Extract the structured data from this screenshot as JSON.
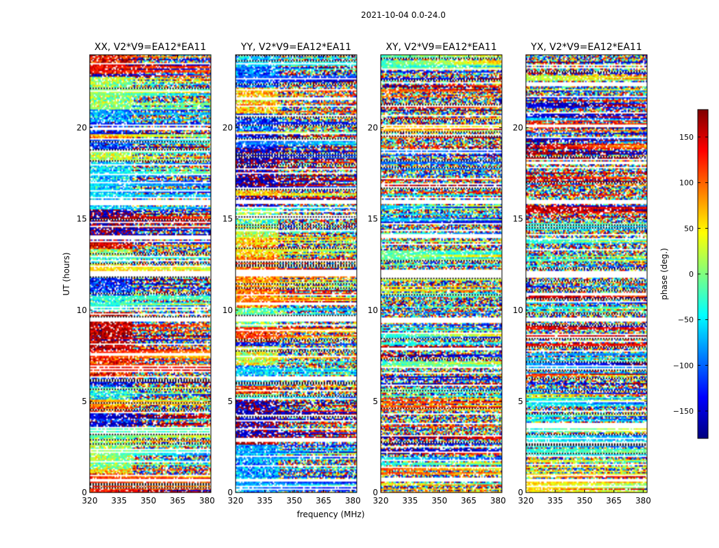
{
  "chart_data": {
    "type": "heatmap",
    "title": "2021-10-04 0.0-24.0",
    "xlabel": "frequency (MHz)",
    "ylabel": "UT (hours)",
    "xlim": [
      320,
      382
    ],
    "ylim": [
      0,
      24
    ],
    "x_ticks": [
      "320",
      "335",
      "350",
      "365",
      "380"
    ],
    "x_tick_values": [
      320,
      335,
      350,
      365,
      380
    ],
    "y_ticks": [
      "0",
      "5",
      "10",
      "15",
      "20"
    ],
    "y_tick_values": [
      0,
      5,
      10,
      15,
      20
    ],
    "panels": [
      {
        "title": "XX, V2*V9=EA12*EA11",
        "polarization": "XX"
      },
      {
        "title": "YY, V2*V9=EA12*EA11",
        "polarization": "YY"
      },
      {
        "title": "XY, V2*V9=EA12*EA11",
        "polarization": "XY"
      },
      {
        "title": "YX, V2*V9=EA12*EA11",
        "polarization": "YX"
      }
    ],
    "colorbar": {
      "label": "phase (deg.)",
      "range": [
        -180,
        180
      ],
      "ticks": [
        "150",
        "100",
        "50",
        "0",
        "−50",
        "−100",
        "−150"
      ],
      "tick_values": [
        150,
        100,
        50,
        0,
        -50,
        -100,
        -150
      ],
      "colormap": "jet"
    },
    "flagged_ut_bands": [
      [
        11.9,
        12.1
      ],
      [
        9.4,
        9.55
      ],
      [
        0.6,
        0.7
      ],
      [
        15.85,
        16.0
      ]
    ],
    "colors": {
      "jet_stops": [
        "#00007f",
        "#0000ff",
        "#007fff",
        "#00ffff",
        "#7fff7f",
        "#ffff00",
        "#ff7f00",
        "#ff0000",
        "#7f0000"
      ],
      "flag": "#ffffff",
      "grid_line": "#000000"
    }
  }
}
